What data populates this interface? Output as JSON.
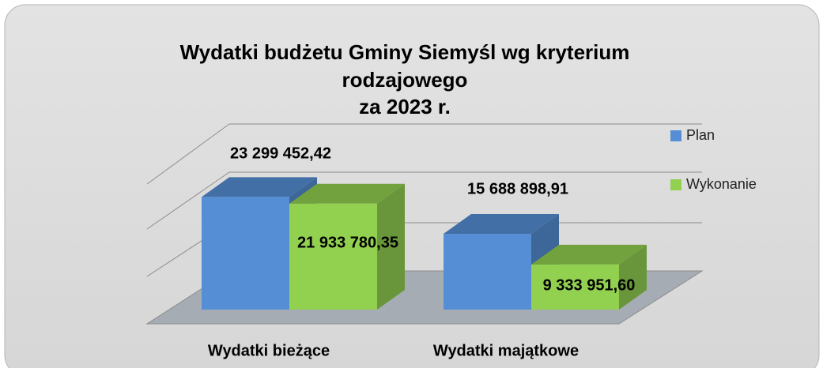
{
  "chart_data": {
    "type": "bar3d",
    "title": [
      "Wydatki budżetu Gminy Siemyśl wg kryterium",
      "rodzajowego",
      "za  2023 r."
    ],
    "categories": [
      "Wydatki bieżące",
      "Wydatki majątkowe"
    ],
    "series": [
      {
        "name": "Plan",
        "color": "#558ed5",
        "values": [
          23299452.42,
          15688898.91
        ],
        "value_labels": [
          "23 299 452,42",
          "15 688 898,91"
        ]
      },
      {
        "name": "Wykonanie",
        "color": "#92d050",
        "values": [
          21933780.35,
          9333951.6
        ],
        "value_labels": [
          "21 933 780,35",
          "9 333 951,60"
        ]
      }
    ],
    "ylim": [
      0,
      25000000
    ],
    "legend": "right"
  }
}
